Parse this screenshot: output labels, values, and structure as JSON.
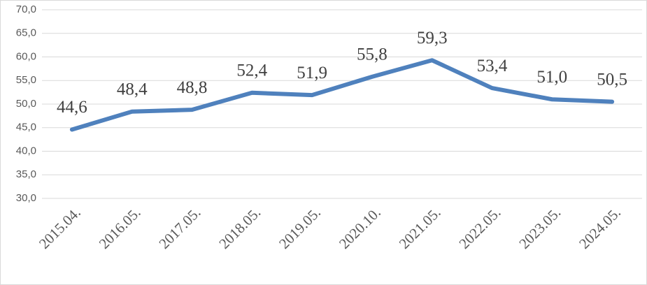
{
  "chart_data": {
    "type": "line",
    "categories": [
      "2015.04.",
      "2016.05.",
      "2017.05.",
      "2018.05.",
      "2019.05.",
      "2020.10.",
      "2021.05.",
      "2022.05.",
      "2023.05.",
      "2024.05."
    ],
    "series": [
      {
        "color": "#4f81bd",
        "values": [
          44.6,
          48.4,
          48.8,
          52.4,
          51.9,
          55.8,
          59.3,
          53.4,
          51.0,
          50.5
        ],
        "value_labels": [
          "44,6",
          "48,4",
          "48,8",
          "52,4",
          "51,9",
          "55,8",
          "59,3",
          "53,4",
          "51,0",
          "50,5"
        ]
      }
    ],
    "ylim": [
      30,
      70
    ],
    "yticks": [
      {
        "value": 30,
        "label": "30,0"
      },
      {
        "value": 35,
        "label": "35,0"
      },
      {
        "value": 40,
        "label": "40,0"
      },
      {
        "value": 45,
        "label": "45,0"
      },
      {
        "value": 50,
        "label": "50,0"
      },
      {
        "value": 55,
        "label": "55,0"
      },
      {
        "value": 60,
        "label": "60,0"
      },
      {
        "value": 65,
        "label": "65,0"
      },
      {
        "value": 70,
        "label": "70,0"
      }
    ],
    "grid": true
  }
}
